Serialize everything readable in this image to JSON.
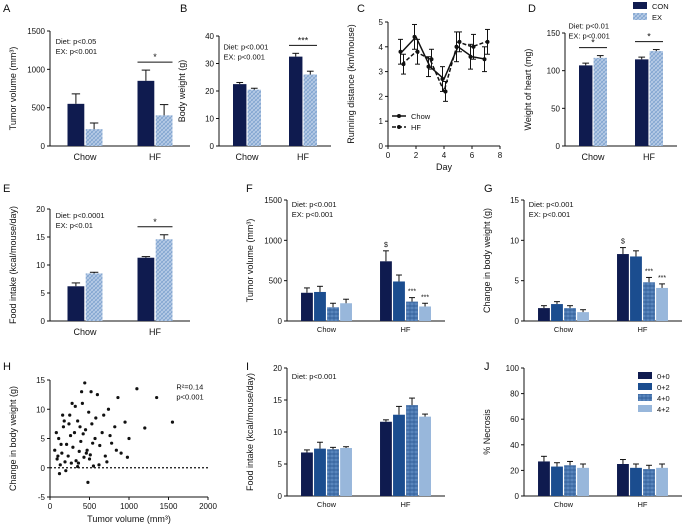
{
  "colors": {
    "navy": "#0f1b4f",
    "blue": "#1b4d8f",
    "mid": "#5a86bd",
    "light": "#98b7db",
    "hatch_bg": "#b9cde7",
    "axis": "#111111"
  },
  "chart_data": [
    {
      "id": "A",
      "panel_label": "A",
      "type": "bar",
      "ylabel": "Tumor volume (mm³)",
      "ylim": [
        0,
        1500
      ],
      "yticks": [
        0,
        500,
        1000,
        1500
      ],
      "categories": [
        "Chow",
        "HF"
      ],
      "series": [
        {
          "name": "CON",
          "values": [
            550,
            850
          ],
          "errors": [
            130,
            140
          ]
        },
        {
          "name": "EX",
          "values": [
            220,
            400
          ],
          "errors": [
            80,
            140
          ]
        }
      ],
      "stats": [
        "Diet: p<0.05",
        "EX: p<0.001"
      ],
      "annotations": [
        {
          "text": "*",
          "category": 1
        }
      ]
    },
    {
      "id": "B",
      "panel_label": "B",
      "type": "bar",
      "ylabel": "Body weight (g)",
      "ylim": [
        0,
        40
      ],
      "yticks": [
        0,
        10,
        20,
        30,
        40
      ],
      "categories": [
        "Chow",
        "HF"
      ],
      "series": [
        {
          "name": "CON",
          "values": [
            22.5,
            32.5
          ],
          "errors": [
            0.6,
            1.2
          ]
        },
        {
          "name": "EX",
          "values": [
            20.5,
            26
          ],
          "errors": [
            0.5,
            1.2
          ]
        }
      ],
      "stats": [
        "Diet: p<0.001",
        "EX: p<0.001"
      ],
      "annotations": [
        {
          "text": "***",
          "category": 1
        }
      ]
    },
    {
      "id": "C",
      "panel_label": "C",
      "type": "line",
      "xlabel": "Day",
      "ylabel": "Running distance (km/mouse)",
      "xlim": [
        0,
        8
      ],
      "ylim": [
        0,
        5
      ],
      "xticks": [
        0,
        2,
        4,
        6,
        8
      ],
      "yticks": [
        0,
        1,
        2,
        3,
        4,
        5
      ],
      "x": [
        1,
        2,
        3,
        4,
        5,
        6,
        7
      ],
      "series": [
        {
          "name": "Chow",
          "values": [
            3.8,
            4.4,
            3.2,
            2.7,
            4.0,
            3.6,
            3.5
          ],
          "errors": [
            0.5,
            0.5,
            0.4,
            0.5,
            0.6,
            0.5,
            0.5
          ]
        },
        {
          "name": "HF",
          "values": [
            3.3,
            3.8,
            3.5,
            2.2,
            4.2,
            4.0,
            4.2
          ],
          "errors": [
            0.4,
            0.5,
            0.4,
            0.4,
            0.4,
            0.5,
            0.5
          ]
        }
      ]
    },
    {
      "id": "D",
      "panel_label": "D",
      "type": "bar",
      "ylabel": "Weight of heart (mg)",
      "ylim": [
        0,
        150
      ],
      "yticks": [
        0,
        50,
        100,
        150
      ],
      "categories": [
        "Chow",
        "HF"
      ],
      "series": [
        {
          "name": "CON",
          "values": [
            107,
            115
          ],
          "errors": [
            3,
            3
          ]
        },
        {
          "name": "EX",
          "values": [
            117,
            126
          ],
          "errors": [
            3,
            2
          ]
        }
      ],
      "stats": [
        "Diet: p<0.01",
        "EX: p<0.001"
      ],
      "annotations": [
        {
          "text": "*",
          "category": 0
        },
        {
          "text": "*",
          "category": 1
        }
      ],
      "legend": [
        "CON",
        "EX"
      ]
    },
    {
      "id": "E",
      "panel_label": "E",
      "type": "bar",
      "ylabel": "Food intake (kcal/mouse/day)",
      "ylim": [
        0,
        20
      ],
      "yticks": [
        0,
        5,
        10,
        15,
        20
      ],
      "categories": [
        "Chow",
        "HF"
      ],
      "series": [
        {
          "name": "CON",
          "values": [
            6.2,
            11.3
          ],
          "errors": [
            0.6,
            0.2
          ]
        },
        {
          "name": "EX",
          "values": [
            8.5,
            14.6
          ],
          "errors": [
            0.2,
            0.8
          ]
        }
      ],
      "stats": [
        "Diet: p<0.0001",
        "EX: p<0.01"
      ],
      "annotations": [
        {
          "text": "*",
          "category": 1
        }
      ]
    },
    {
      "id": "F",
      "panel_label": "F",
      "type": "bar",
      "ylabel": "Tumor volume (mm³)",
      "ylim": [
        0,
        1500
      ],
      "yticks": [
        0,
        500,
        1000,
        1500
      ],
      "categories": [
        "Chow",
        "HF"
      ],
      "series": [
        {
          "name": "0+0",
          "values": [
            350,
            740
          ],
          "errors": [
            60,
            130
          ]
        },
        {
          "name": "0+2",
          "values": [
            360,
            490
          ],
          "errors": [
            70,
            80
          ]
        },
        {
          "name": "4+0",
          "values": [
            170,
            240
          ],
          "errors": [
            50,
            50
          ]
        },
        {
          "name": "4+2",
          "values": [
            220,
            180
          ],
          "errors": [
            50,
            40
          ]
        }
      ],
      "stats": [
        "Diet: p<0.001",
        "EX: p<0.001"
      ],
      "annotations": [
        {
          "text": "$",
          "category": 1,
          "series": 0
        },
        {
          "text": "***",
          "category": 1,
          "series": 2
        },
        {
          "text": "***",
          "category": 1,
          "series": 3
        }
      ]
    },
    {
      "id": "G",
      "panel_label": "G",
      "type": "bar",
      "ylabel": "Change in body weight (g)",
      "ylim": [
        0,
        15
      ],
      "yticks": [
        0,
        5,
        10,
        15
      ],
      "categories": [
        "Chow",
        "HF"
      ],
      "series": [
        {
          "name": "0+0",
          "values": [
            1.6,
            8.3
          ],
          "errors": [
            0.3,
            0.8
          ]
        },
        {
          "name": "0+2",
          "values": [
            2.1,
            8.0
          ],
          "errors": [
            0.3,
            0.7
          ]
        },
        {
          "name": "4+0",
          "values": [
            1.6,
            4.8
          ],
          "errors": [
            0.3,
            0.6
          ]
        },
        {
          "name": "4+2",
          "values": [
            1.1,
            4.1
          ],
          "errors": [
            0.3,
            0.5
          ]
        }
      ],
      "stats": [
        "Diet: p<0.001",
        "EX: p<0.001"
      ],
      "annotations": [
        {
          "text": "$",
          "category": 1,
          "series": 0
        },
        {
          "text": "***",
          "category": 1,
          "series": 2
        },
        {
          "text": "***",
          "category": 1,
          "series": 3
        }
      ]
    },
    {
      "id": "H",
      "panel_label": "H",
      "type": "scatter",
      "xlabel": "Tumor volume (mm³)",
      "ylabel": "Change in body weight (g)",
      "xlim": [
        0,
        2000
      ],
      "ylim": [
        -5,
        15
      ],
      "xticks": [
        0,
        500,
        1000,
        1500,
        2000
      ],
      "yticks": [
        -5,
        0,
        5,
        10,
        15
      ],
      "stats": [
        "R²=0.14",
        "p<0.001"
      ],
      "points": [
        [
          60,
          3
        ],
        [
          90,
          1.5
        ],
        [
          110,
          5
        ],
        [
          130,
          0.5
        ],
        [
          150,
          2.5
        ],
        [
          170,
          7
        ],
        [
          190,
          1
        ],
        [
          210,
          4
        ],
        [
          230,
          2
        ],
        [
          250,
          9
        ],
        [
          270,
          0.8
        ],
        [
          290,
          3.5
        ],
        [
          310,
          6
        ],
        [
          330,
          1.2
        ],
        [
          350,
          8
        ],
        [
          370,
          2.8
        ],
        [
          390,
          4.5
        ],
        [
          410,
          11
        ],
        [
          430,
          1.8
        ],
        [
          450,
          6.5
        ],
        [
          470,
          3
        ],
        [
          490,
          9.5
        ],
        [
          510,
          2.2
        ],
        [
          530,
          7.5
        ],
        [
          550,
          0.3
        ],
        [
          570,
          5
        ],
        [
          600,
          12.5
        ],
        [
          630,
          3.8
        ],
        [
          660,
          6
        ],
        [
          700,
          2
        ],
        [
          740,
          10
        ],
        [
          780,
          4.2
        ],
        [
          820,
          7
        ],
        [
          860,
          12
        ],
        [
          900,
          2.5
        ],
        [
          950,
          7.8
        ],
        [
          1000,
          5
        ],
        [
          1100,
          13.5
        ],
        [
          1200,
          6.8
        ],
        [
          1350,
          12
        ],
        [
          1550,
          7.8
        ],
        [
          120,
          -1
        ],
        [
          200,
          -0.5
        ],
        [
          350,
          0.2
        ],
        [
          480,
          -2.5
        ],
        [
          80,
          6
        ],
        [
          160,
          9
        ],
        [
          240,
          7.5
        ],
        [
          320,
          10.5
        ],
        [
          400,
          13
        ],
        [
          440,
          14.5
        ],
        [
          520,
          13
        ],
        [
          580,
          8.5
        ],
        [
          680,
          9
        ],
        [
          760,
          5.5
        ],
        [
          140,
          4
        ],
        [
          260,
          5.5
        ],
        [
          380,
          7
        ],
        [
          460,
          2.5
        ],
        [
          540,
          4.2
        ],
        [
          100,
          2
        ],
        [
          180,
          8
        ],
        [
          280,
          11
        ],
        [
          360,
          0.8
        ],
        [
          420,
          5.8
        ],
        [
          500,
          1.5
        ],
        [
          620,
          0.5
        ],
        [
          720,
          1
        ],
        [
          840,
          3
        ],
        [
          980,
          1.8
        ]
      ]
    },
    {
      "id": "I",
      "panel_label": "I",
      "type": "bar",
      "ylabel": "Food intake (kcal/mouse/day)",
      "ylim": [
        0,
        20
      ],
      "yticks": [
        0,
        5,
        10,
        15,
        20
      ],
      "categories": [
        "Chow",
        "HF"
      ],
      "series": [
        {
          "name": "0+0",
          "values": [
            6.8,
            11.6
          ],
          "errors": [
            0.4,
            0.3
          ]
        },
        {
          "name": "0+2",
          "values": [
            7.4,
            12.7
          ],
          "errors": [
            1.0,
            1.3
          ]
        },
        {
          "name": "4+0",
          "values": [
            7.3,
            14.2
          ],
          "errors": [
            0.3,
            1.1
          ]
        },
        {
          "name": "4+2",
          "values": [
            7.5,
            12.4
          ],
          "errors": [
            0.2,
            0.4
          ]
        }
      ],
      "stats": [
        "Diet: p<0.001"
      ]
    },
    {
      "id": "J",
      "panel_label": "J",
      "type": "bar",
      "ylabel": "% Necrosis",
      "ylim": [
        0,
        100
      ],
      "yticks": [
        0,
        20,
        40,
        60,
        80,
        100
      ],
      "categories": [
        "Chow",
        "HF"
      ],
      "series": [
        {
          "name": "0+0",
          "values": [
            27,
            25
          ],
          "errors": [
            4,
            3.5
          ]
        },
        {
          "name": "0+2",
          "values": [
            23,
            22
          ],
          "errors": [
            3,
            3
          ]
        },
        {
          "name": "4+0",
          "values": [
            24,
            21
          ],
          "errors": [
            3,
            3
          ]
        },
        {
          "name": "4+2",
          "values": [
            22,
            22
          ],
          "errors": [
            3,
            3
          ]
        }
      ],
      "legend": [
        "0+0",
        "0+2",
        "4+0",
        "4+2"
      ]
    }
  ]
}
